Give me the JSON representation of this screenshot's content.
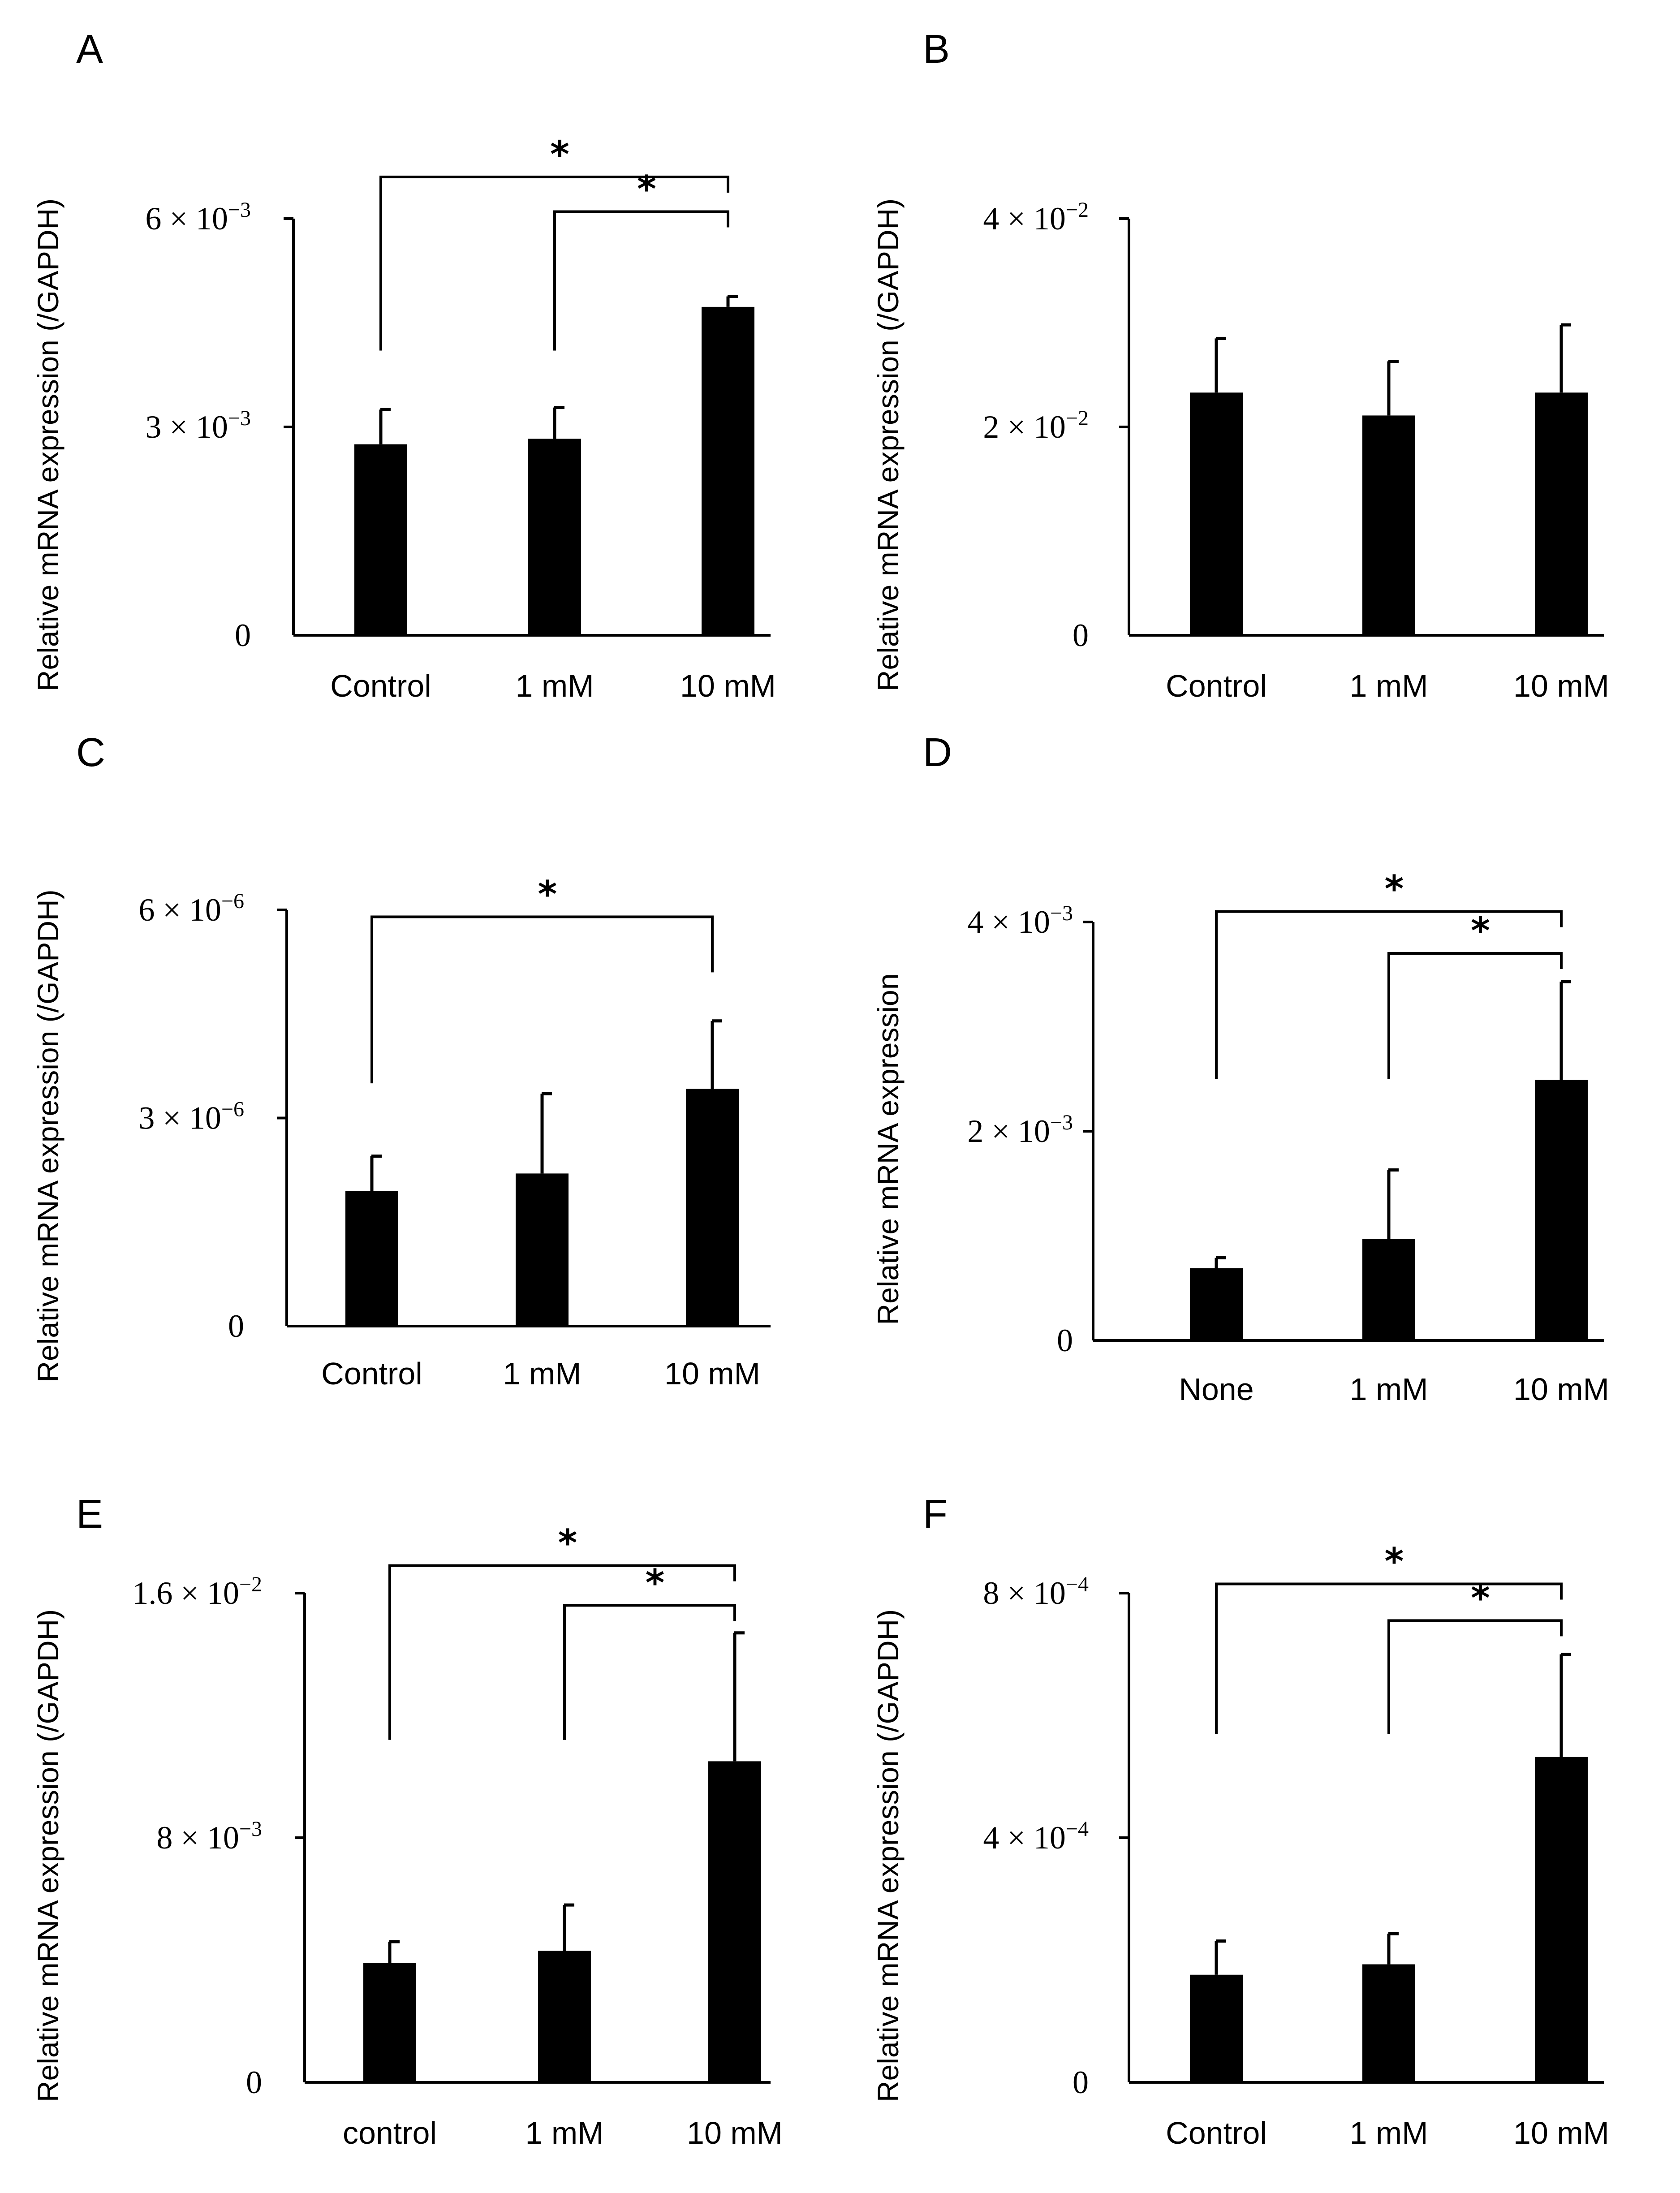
{
  "figure": {
    "panels": [
      "A",
      "B",
      "C",
      "D",
      "E",
      "F"
    ]
  },
  "colors": {
    "bar": "#000000",
    "axis": "#000000",
    "background": "#ffffff"
  },
  "chart_data": [
    {
      "panel": "A",
      "type": "bar",
      "title": "",
      "xlabel": "",
      "ylabel": "Relative mRNA expression (/GAPDH)",
      "categories": [
        "Control",
        "1 mM",
        "10 mM"
      ],
      "values": [
        0.00275,
        0.00283,
        0.00473
      ],
      "errors": [
        0.0005,
        0.00045,
        0.00015
      ],
      "ylim": [
        0,
        0.006
      ],
      "ticks": [
        {
          "value": 0,
          "label": "0"
        },
        {
          "value": 0.003,
          "label": "3 × 10",
          "exp": "−3"
        },
        {
          "value": 0.006,
          "label": "6 × 10",
          "exp": "−3"
        }
      ],
      "significance": [
        {
          "from": 0,
          "to": 2,
          "label": "*",
          "level": 0.0066,
          "left_drop_to": 0.0041
        },
        {
          "from": 1,
          "to": 2,
          "label": "*",
          "level": 0.0061,
          "left_drop_to": 0.0041
        }
      ]
    },
    {
      "panel": "B",
      "type": "bar",
      "title": "",
      "xlabel": "",
      "ylabel": "Relative mRNA expression (/GAPDH)",
      "categories": [
        "Control",
        "1 mM",
        "10 mM"
      ],
      "values": [
        0.0233,
        0.0211,
        0.0233
      ],
      "errors": [
        0.0052,
        0.0052,
        0.0065
      ],
      "ylim": [
        0,
        0.04
      ],
      "ticks": [
        {
          "value": 0,
          "label": "0"
        },
        {
          "value": 0.02,
          "label": "2 × 10",
          "exp": "−2"
        },
        {
          "value": 0.04,
          "label": "4 × 10",
          "exp": "−2"
        }
      ],
      "significance": []
    },
    {
      "panel": "C",
      "type": "bar",
      "title": "",
      "xlabel": "",
      "ylabel": "Relative mRNA expression (/GAPDH)",
      "categories": [
        "Control",
        "1 mM",
        "10 mM"
      ],
      "values": [
        1.95e-06,
        2.2e-06,
        3.42e-06
      ],
      "errors": [
        5e-07,
        1.15e-06,
        9.8e-07
      ],
      "ylim": [
        0,
        6e-06
      ],
      "ticks": [
        {
          "value": 0,
          "label": "0"
        },
        {
          "value": 3e-06,
          "label": "3 × 10",
          "exp": "−6"
        },
        {
          "value": 6e-06,
          "label": "6 × 10",
          "exp": "−6"
        }
      ],
      "significance": [
        {
          "from": 0,
          "to": 2,
          "label": "*",
          "level": 5.9e-06,
          "left_drop_to": 3.5e-06,
          "right_drop_to": 5.1e-06
        }
      ]
    },
    {
      "panel": "D",
      "type": "bar",
      "title": "",
      "xlabel": "",
      "ylabel": "Relative mRNA expression",
      "categories": [
        "None",
        "1 mM",
        "10 mM"
      ],
      "values": [
        0.00069,
        0.00097,
        0.00249
      ],
      "errors": [
        0.0001,
        0.00066,
        0.00094
      ],
      "ylim": [
        0,
        0.004
      ],
      "ticks": [
        {
          "value": 0,
          "label": "0"
        },
        {
          "value": 0.002,
          "label": "2 × 10",
          "exp": "−3"
        },
        {
          "value": 0.004,
          "label": "4 × 10",
          "exp": "−3"
        }
      ],
      "significance": [
        {
          "from": 0,
          "to": 2,
          "label": "*",
          "level": 0.0041,
          "left_drop_to": 0.0025
        },
        {
          "from": 1,
          "to": 2,
          "label": "*",
          "level": 0.0037,
          "left_drop_to": 0.0025
        }
      ]
    },
    {
      "panel": "E",
      "type": "bar",
      "title": "",
      "xlabel": "",
      "ylabel": "Relative mRNA expression (/GAPDH)",
      "categories": [
        "control",
        "1 mM",
        "10 mM"
      ],
      "values": [
        0.0039,
        0.0043,
        0.0105
      ],
      "errors": [
        0.0007,
        0.0015,
        0.0042
      ],
      "ylim": [
        0,
        0.016
      ],
      "ticks": [
        {
          "value": 0,
          "label": "0"
        },
        {
          "value": 0.008,
          "label": "8 × 10",
          "exp": "−3"
        },
        {
          "value": 0.016,
          "label": "1.6 × 10",
          "exp": "−2"
        }
      ],
      "significance": [
        {
          "from": 0,
          "to": 2,
          "label": "*",
          "level": 0.0169,
          "left_drop_to": 0.0112
        },
        {
          "from": 1,
          "to": 2,
          "label": "*",
          "level": 0.0156,
          "left_drop_to": 0.0112
        }
      ]
    },
    {
      "panel": "F",
      "type": "bar",
      "title": "",
      "xlabel": "",
      "ylabel": "Relative mRNA expression (/GAPDH)",
      "categories": [
        "Control",
        "1 mM",
        "10 mM"
      ],
      "values": [
        0.000176,
        0.000193,
        0.000532
      ],
      "errors": [
        5.5e-05,
        5e-05,
        0.000168
      ],
      "ylim": [
        0,
        0.0008
      ],
      "ticks": [
        {
          "value": 0,
          "label": "0"
        },
        {
          "value": 0.0004,
          "label": "4 × 10",
          "exp": "−4"
        },
        {
          "value": 0.0008,
          "label": "8 × 10",
          "exp": "−4"
        }
      ],
      "significance": [
        {
          "from": 0,
          "to": 2,
          "label": "*",
          "level": 0.000815,
          "left_drop_to": 0.00057
        },
        {
          "from": 1,
          "to": 2,
          "label": "*",
          "level": 0.000755,
          "left_drop_to": 0.00057
        }
      ]
    }
  ]
}
